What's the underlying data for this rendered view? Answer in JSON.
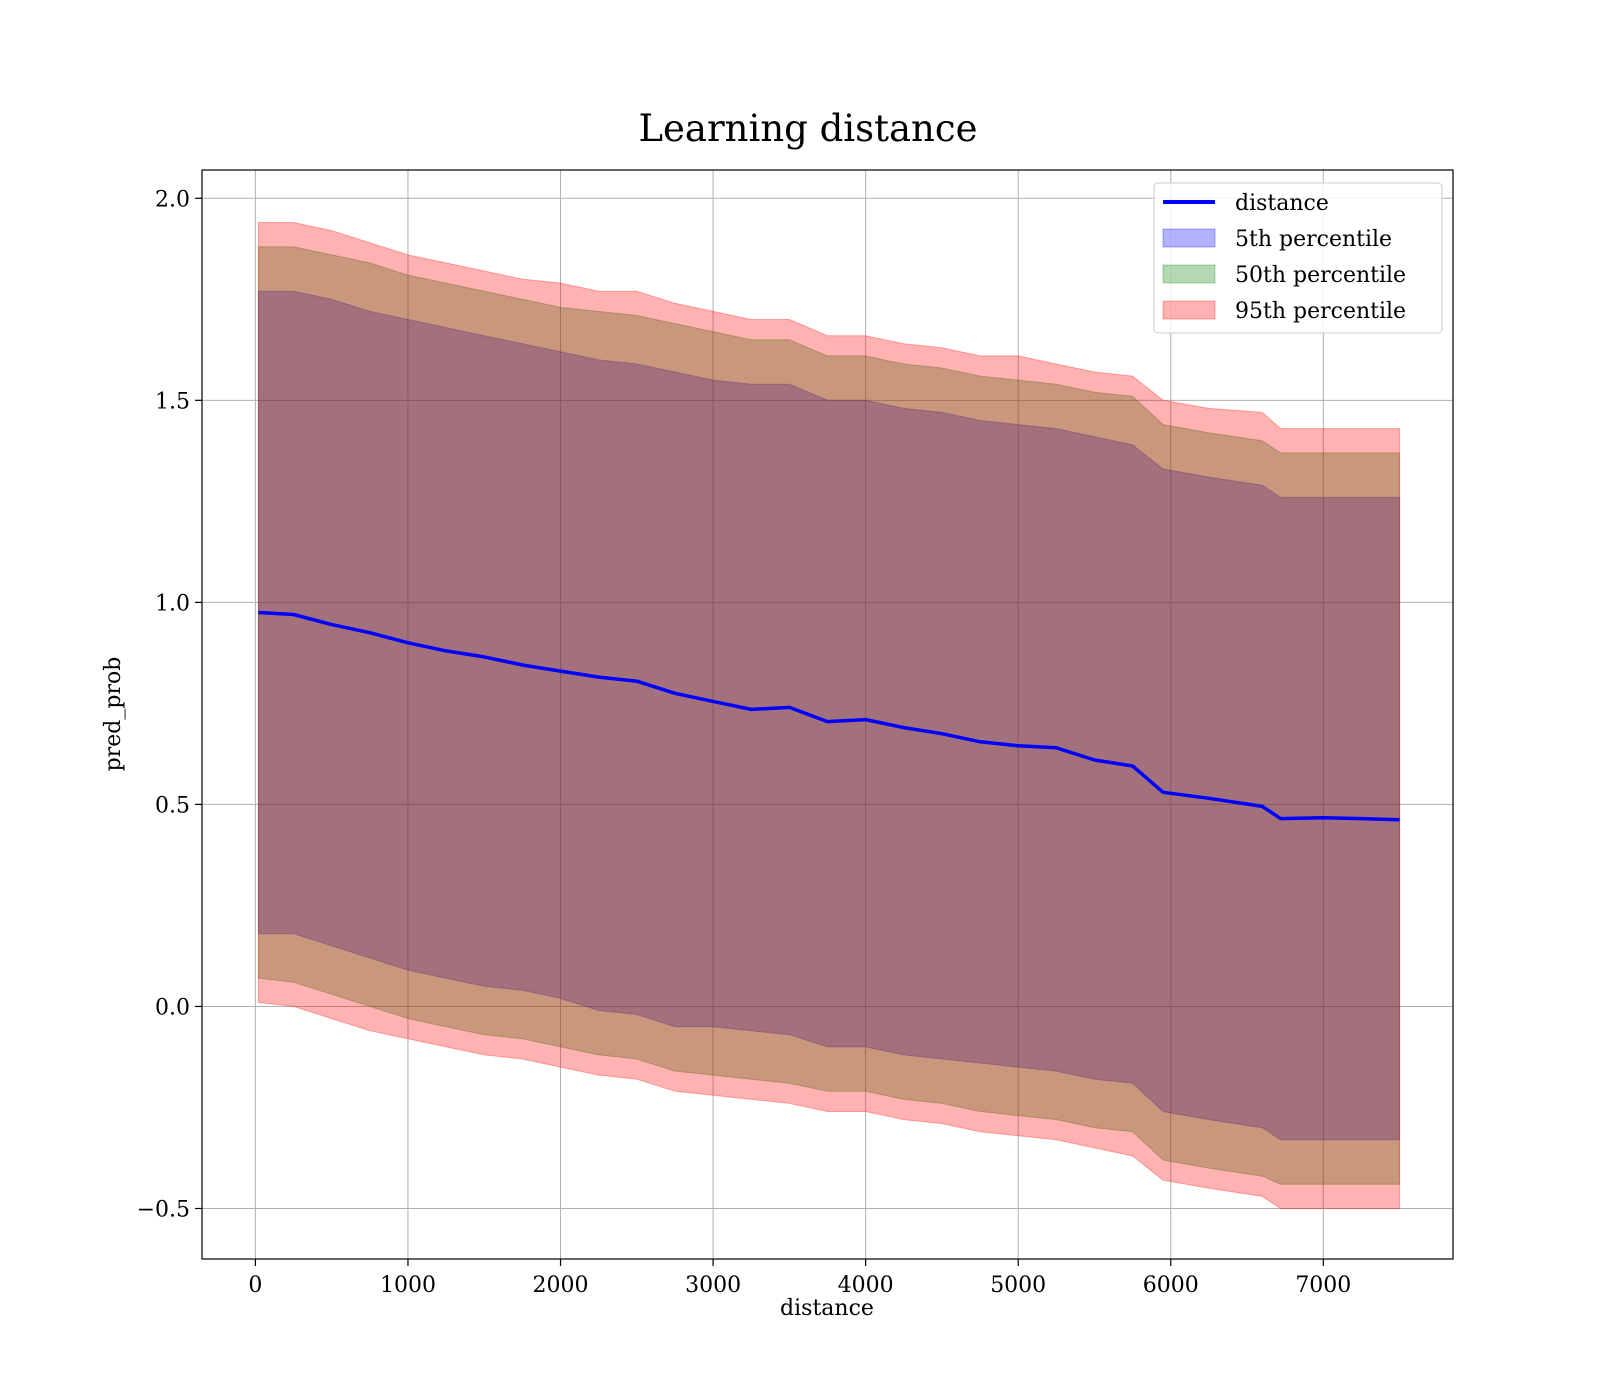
{
  "chart_data": {
    "type": "line",
    "title": "Learning distance",
    "xlabel": "distance",
    "ylabel": "pred_prob",
    "xlim": [
      -350,
      7850
    ],
    "ylim": [
      -0.625,
      2.07
    ],
    "xticks": [
      0,
      1000,
      2000,
      3000,
      4000,
      5000,
      6000,
      7000
    ],
    "xtick_labels": [
      "0",
      "1000",
      "2000",
      "3000",
      "4000",
      "5000",
      "6000",
      "7000"
    ],
    "yticks": [
      -0.5,
      0.0,
      0.5,
      1.0,
      1.5,
      2.0
    ],
    "ytick_labels": [
      "−0.5",
      "0.0",
      "0.5",
      "1.0",
      "1.5",
      "2.0"
    ],
    "grid": true,
    "legend_position": "top-right",
    "x": [
      20,
      250,
      500,
      750,
      1000,
      1250,
      1500,
      1750,
      2000,
      2250,
      2500,
      2750,
      3000,
      3250,
      3500,
      3750,
      4000,
      4250,
      4500,
      4750,
      5000,
      5250,
      5500,
      5750,
      5950,
      6250,
      6600,
      6720,
      7000,
      7250,
      7500
    ],
    "series": [
      {
        "name": "distance",
        "kind": "line",
        "color": "#0000ff",
        "values": [
          0.975,
          0.97,
          0.945,
          0.925,
          0.9,
          0.88,
          0.865,
          0.845,
          0.83,
          0.815,
          0.805,
          0.775,
          0.755,
          0.735,
          0.74,
          0.705,
          0.71,
          0.69,
          0.675,
          0.655,
          0.645,
          0.64,
          0.61,
          0.595,
          0.53,
          0.515,
          0.495,
          0.465,
          0.467,
          0.465,
          0.462
        ]
      },
      {
        "name": "5th percentile",
        "kind": "band",
        "color": "#0000ff",
        "lower": [
          0.18,
          0.18,
          0.15,
          0.12,
          0.09,
          0.07,
          0.05,
          0.04,
          0.02,
          -0.01,
          -0.02,
          -0.05,
          -0.05,
          -0.06,
          -0.07,
          -0.1,
          -0.1,
          -0.12,
          -0.13,
          -0.14,
          -0.15,
          -0.16,
          -0.18,
          -0.19,
          -0.26,
          -0.28,
          -0.3,
          -0.33,
          -0.33,
          -0.33,
          -0.33
        ],
        "upper": [
          1.77,
          1.77,
          1.75,
          1.72,
          1.7,
          1.68,
          1.66,
          1.64,
          1.62,
          1.6,
          1.59,
          1.57,
          1.55,
          1.54,
          1.54,
          1.5,
          1.5,
          1.48,
          1.47,
          1.45,
          1.44,
          1.43,
          1.41,
          1.39,
          1.33,
          1.31,
          1.29,
          1.26,
          1.26,
          1.26,
          1.26
        ]
      },
      {
        "name": "50th percentile",
        "kind": "band",
        "color": "#008000",
        "lower": [
          0.07,
          0.06,
          0.03,
          0.0,
          -0.03,
          -0.05,
          -0.07,
          -0.08,
          -0.1,
          -0.12,
          -0.13,
          -0.16,
          -0.17,
          -0.18,
          -0.19,
          -0.21,
          -0.21,
          -0.23,
          -0.24,
          -0.26,
          -0.27,
          -0.28,
          -0.3,
          -0.31,
          -0.38,
          -0.4,
          -0.42,
          -0.44,
          -0.44,
          -0.44,
          -0.44
        ],
        "upper": [
          1.88,
          1.88,
          1.86,
          1.84,
          1.81,
          1.79,
          1.77,
          1.75,
          1.73,
          1.72,
          1.71,
          1.69,
          1.67,
          1.65,
          1.65,
          1.61,
          1.61,
          1.59,
          1.58,
          1.56,
          1.55,
          1.54,
          1.52,
          1.51,
          1.44,
          1.42,
          1.4,
          1.37,
          1.37,
          1.37,
          1.37
        ]
      },
      {
        "name": "95th percentile",
        "kind": "band",
        "color": "#ff0000",
        "lower": [
          0.01,
          0.0,
          -0.03,
          -0.06,
          -0.08,
          -0.1,
          -0.12,
          -0.13,
          -0.15,
          -0.17,
          -0.18,
          -0.21,
          -0.22,
          -0.23,
          -0.24,
          -0.26,
          -0.26,
          -0.28,
          -0.29,
          -0.31,
          -0.32,
          -0.33,
          -0.35,
          -0.37,
          -0.43,
          -0.45,
          -0.47,
          -0.5,
          -0.5,
          -0.5,
          -0.5
        ],
        "upper": [
          1.94,
          1.94,
          1.92,
          1.89,
          1.86,
          1.84,
          1.82,
          1.8,
          1.79,
          1.77,
          1.77,
          1.74,
          1.72,
          1.7,
          1.7,
          1.66,
          1.66,
          1.64,
          1.63,
          1.61,
          1.61,
          1.59,
          1.57,
          1.56,
          1.5,
          1.48,
          1.47,
          1.43,
          1.43,
          1.43,
          1.43
        ]
      }
    ]
  }
}
